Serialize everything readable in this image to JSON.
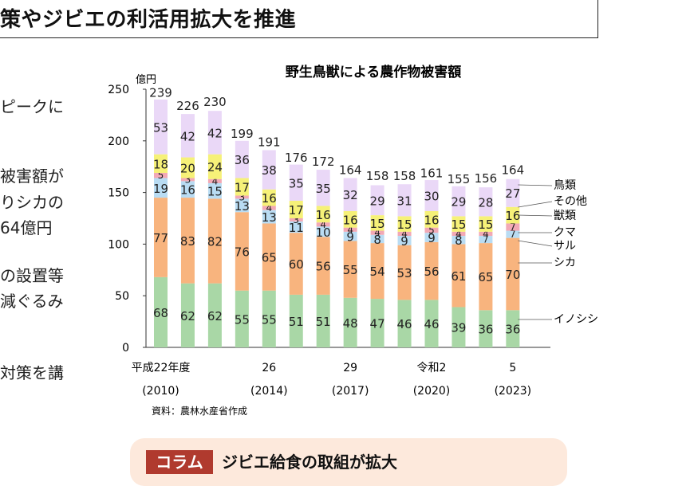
{
  "header": {
    "title": "策やジビエの利活用拡大を推進"
  },
  "side_text": [
    "ピークに",
    "被害額が",
    "りシカの",
    "64億円",
    "の設置等",
    "減ぐるみ",
    "対策を講"
  ],
  "column": {
    "tag": "コラム",
    "title": "ジビエ給食の取組が拡大"
  },
  "colors": {
    "inoshishi": "#a9d7a6",
    "shika": "#f8b47e",
    "saru": "#f2a9b5",
    "kuma": "#b9dcf3",
    "sonota": "#f6f178",
    "chorui": "#ead8f7"
  },
  "chart_data": {
    "type": "bar",
    "stacked": true,
    "title": "野生鳥獣による農作物被害額",
    "yunit": "億円",
    "ylim": [
      0,
      250
    ],
    "yticks": [
      0,
      50,
      100,
      150,
      200,
      250
    ],
    "source": "資料：農林水産省作成",
    "categories": [
      "2010",
      "2011",
      "2012",
      "2013",
      "2014",
      "2015",
      "2016",
      "2017",
      "2018",
      "2019",
      "2020",
      "2021",
      "2022",
      "2023"
    ],
    "xlabels": [
      {
        "index": 0,
        "top": "平成22年度",
        "bottom": "(2010)"
      },
      {
        "index": 4,
        "top": "26",
        "bottom": "(2014)"
      },
      {
        "index": 7,
        "top": "29",
        "bottom": "(2017)"
      },
      {
        "index": 10,
        "top": "令和2",
        "bottom": "(2020)"
      },
      {
        "index": 13,
        "top": "5",
        "bottom": "(2023)"
      }
    ],
    "totals": [
      239,
      226,
      230,
      199,
      191,
      176,
      172,
      164,
      158,
      158,
      161,
      155,
      156,
      164
    ],
    "series": [
      {
        "name": "イノシシ",
        "key": "inoshishi",
        "values": [
          68,
          62,
          62,
          55,
          55,
          51,
          51,
          48,
          47,
          46,
          46,
          39,
          36,
          36
        ]
      },
      {
        "name": "シカ",
        "key": "shika",
        "values": [
          77,
          83,
          82,
          76,
          65,
          60,
          56,
          55,
          54,
          53,
          56,
          61,
          65,
          70
        ]
      },
      {
        "name": "サル",
        "key": "saru",
        "values": [
          null,
          null,
          null,
          null,
          null,
          null,
          null,
          null,
          null,
          null,
          null,
          null,
          null,
          null
        ]
      },
      {
        "name": "クマ",
        "key": "kuma",
        "values": [
          19,
          16,
          15,
          13,
          13,
          11,
          10,
          9,
          8,
          9,
          9,
          8,
          7,
          7
        ]
      },
      {
        "name": "獣類",
        "key": "sonota_beast",
        "values": [
          5,
          3,
          4,
          3,
          4,
          3,
          4,
          4,
          4,
          4,
          5,
          4,
          4,
          7
        ]
      },
      {
        "name": "その他",
        "key": "sonota",
        "values": [
          18,
          20,
          24,
          17,
          16,
          17,
          16,
          16,
          15,
          15,
          16,
          15,
          15,
          16
        ]
      },
      {
        "name": "鳥類",
        "key": "chorui",
        "values": [
          53,
          42,
          42,
          36,
          38,
          35,
          35,
          32,
          29,
          31,
          30,
          29,
          28,
          27
        ]
      }
    ]
  }
}
